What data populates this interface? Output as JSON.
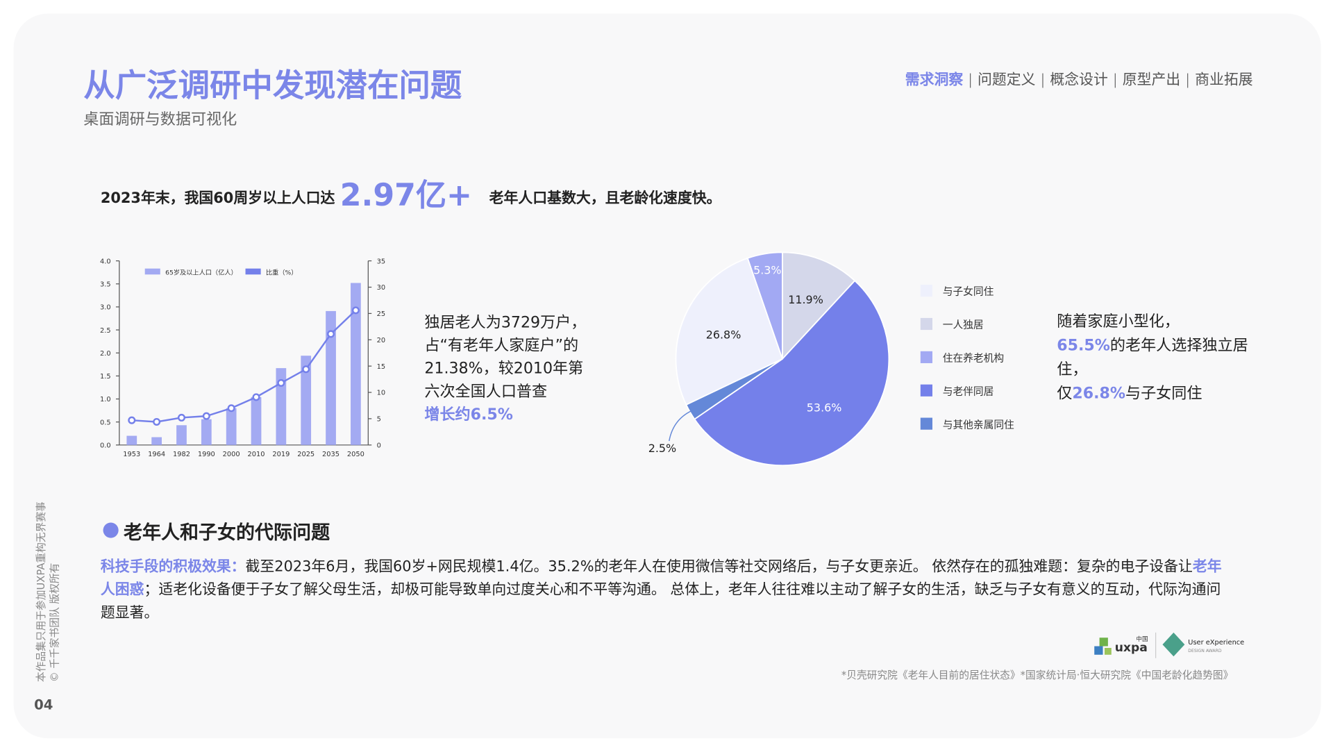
{
  "header": {
    "title": "从广泛调研中发现潜在问题",
    "subtitle": "桌面调研与数据可视化",
    "nav": [
      "需求洞察",
      "问题定义",
      "概念设计",
      "原型产出",
      "商业拓展"
    ]
  },
  "headline": {
    "lead": "2023年末，我国60周岁以上人口达",
    "figure": "2.97亿+",
    "tail": "老年人口基数大，且老龄化速度快。"
  },
  "left_note": {
    "text": "独居老人为3729万户，占“有老年人家庭户”的21.38%，较2010年第六次全国人口普查",
    "highlight": "增长约6.5%"
  },
  "right_note": {
    "line1": "随着家庭小型化，",
    "figure1": "65.5%",
    "text1": "的老年人选择独立居住，",
    "prefix2": "仅",
    "figure2": "26.8%",
    "text2": "与子女同住"
  },
  "section": {
    "heading": "老年人和子女的代际问题",
    "label": "科技手段的积极效果：",
    "text1": "截至2023年6月，我国60岁+网民规模1.4亿。35.2%的老年人在使用微信等社交网络后，与子女更亲近。 依然存在的孤独难题：复杂的电子设备让",
    "highlight": "老年人困惑",
    "text2": "；适老化设备便于子女了解父母生活，却极可能导致单向过度关心和不平等沟通。 总体上，老年人往往难以主动了解子女的生活，缺乏与子女有意义的互动，代际沟通问题显著。"
  },
  "footer": {
    "source": "*贝壳研究院《老年人目前的居住状态》*国家统计局·恒大研究院《中国老龄化趋势图》",
    "copyright": [
      "本作品集只用于参加UXPA重构无界赛事",
      "© 千千家书团队 版权所有"
    ],
    "page": "04",
    "logos": [
      "uxpa",
      "中国",
      "User eXperience",
      "DESIGN AWARD"
    ]
  },
  "chart_data": [
    {
      "type": "combo",
      "categories": [
        "1953",
        "1964",
        "1982",
        "1990",
        "2000",
        "2010",
        "2019",
        "2025",
        "2035",
        "2050"
      ],
      "series": [
        {
          "name": "65岁及以上人口（亿人）",
          "color": "#a3aaf2",
          "values": [
            0.2,
            0.17,
            0.43,
            0.56,
            0.8,
            1.04,
            1.67,
            1.94,
            2.91,
            3.52
          ]
        },
        {
          "name": "比重（%）",
          "color": "#7480ea",
          "axis": "y2",
          "values": [
            4.7,
            4.4,
            5.2,
            5.5,
            7.0,
            9.1,
            11.8,
            14.4,
            21.1,
            25.6
          ]
        }
      ],
      "ylim": [
        0,
        4
      ],
      "yticks": [
        {
          "value": 0,
          "label": "0.0"
        },
        0.5,
        {
          "value": 1,
          "label": "1.0"
        },
        1.5,
        {
          "value": 2,
          "label": "2.0"
        },
        2.5,
        {
          "value": 3,
          "label": "3.0"
        },
        3.5,
        {
          "value": 4,
          "label": "4.0"
        }
      ],
      "y2lim": [
        0,
        35
      ],
      "y2ticks": [
        0,
        5,
        10,
        15,
        20,
        25,
        30,
        35
      ]
    },
    {
      "type": "pie",
      "categories": [
        "与子女同住",
        "一人独居",
        "住在养老机构",
        "与老伴同居",
        "与其他亲属同住"
      ],
      "values": [
        26.8,
        11.9,
        5.3,
        53.6,
        2.5
      ],
      "value_labels": [
        "26.8%",
        "11.9%",
        "5.3%",
        "53.6%",
        "2.5%"
      ],
      "colors": [
        "#eef0fc",
        "#d4d7ea",
        "#a2a9f3",
        "#7480ea",
        "#6488d8"
      ]
    }
  ]
}
